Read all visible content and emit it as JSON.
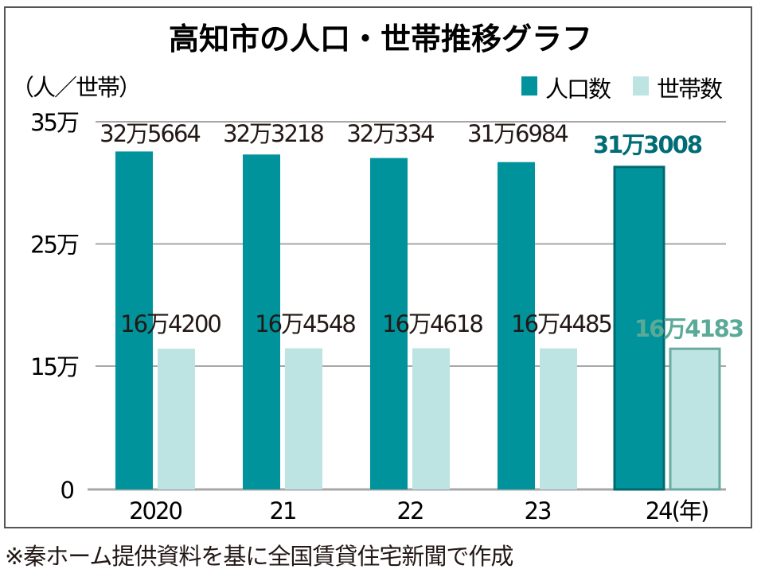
{
  "chart_data": {
    "type": "bar",
    "title": "高知市の人口・世帯推移グラフ",
    "ylabel": "（人／世帯）",
    "categories": [
      "2020",
      "21",
      "22",
      "23",
      "24(年)"
    ],
    "series": [
      {
        "name": "人口数",
        "color": "#00939b",
        "values": [
          325664,
          323218,
          320334,
          316984,
          313008
        ],
        "labels": [
          "32万5664",
          "32万3218",
          "32万334",
          "31万6984",
          "31万3008"
        ]
      },
      {
        "name": "世帯数",
        "color": "#bde3e3",
        "values": [
          164200,
          164548,
          164618,
          164485,
          164183
        ],
        "labels": [
          "16万4200",
          "16万4548",
          "16万4618",
          "16万4485",
          "16万4183"
        ]
      }
    ],
    "yticks": [
      {
        "value": 0,
        "label": "0"
      },
      {
        "value": 150000,
        "label": "15万"
      },
      {
        "value": 250000,
        "label": "25万"
      },
      {
        "value": 350000,
        "label": "35万"
      }
    ],
    "ylim": [
      0,
      350000
    ],
    "axis_break": "0–15万 compressed",
    "grid": true,
    "legend": "top-right",
    "highlight_category": "24(年)",
    "highlight_colors": {
      "population_border": "#006a70",
      "household_border": "#6aab9f",
      "population_label": "#006d76",
      "household_label": "#5aaa98"
    }
  },
  "footnote": "※秦ホーム提供資料を基に全国賃貸住宅新聞で作成"
}
